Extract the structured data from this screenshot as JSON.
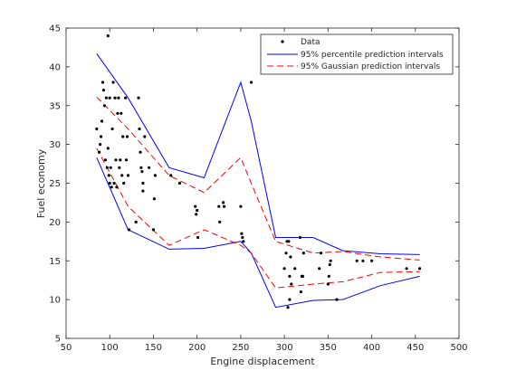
{
  "chart_data": {
    "type": "scatter",
    "title": "",
    "xlabel": "Engine displacement",
    "ylabel": "Fuel economy",
    "xlim": [
      50,
      500
    ],
    "ylim": [
      5,
      45
    ],
    "xticks": [
      50,
      100,
      150,
      200,
      250,
      300,
      350,
      400,
      450,
      500
    ],
    "yticks": [
      5,
      10,
      15,
      20,
      25,
      30,
      35,
      40,
      45
    ],
    "grid": false,
    "legend_position": "top-right",
    "colors": {
      "data": "#000000",
      "percentile": "#0000ff",
      "gaussian": "#ff0000"
    },
    "legend": [
      {
        "label": "Data",
        "style": "marker"
      },
      {
        "label": "95% percentile prediction intervals",
        "style": "solid"
      },
      {
        "label": "95% Gaussian prediction intervals",
        "style": "dashed"
      }
    ],
    "series": [
      {
        "name": "Data",
        "kind": "points",
        "points": [
          [
            85,
            32
          ],
          [
            88,
            29
          ],
          [
            89,
            30
          ],
          [
            90,
            31
          ],
          [
            91,
            33
          ],
          [
            92,
            38
          ],
          [
            93,
            37
          ],
          [
            94,
            35
          ],
          [
            95,
            28
          ],
          [
            96,
            36
          ],
          [
            97,
            27
          ],
          [
            98,
            29.5
          ],
          [
            98,
            44
          ],
          [
            99,
            26
          ],
          [
            100,
            25
          ],
          [
            100,
            36
          ],
          [
            101,
            27
          ],
          [
            102,
            24.5
          ],
          [
            103,
            32
          ],
          [
            104,
            38
          ],
          [
            105,
            25
          ],
          [
            106,
            36
          ],
          [
            107,
            28
          ],
          [
            108,
            24.5
          ],
          [
            109,
            34
          ],
          [
            110,
            36
          ],
          [
            111,
            27
          ],
          [
            112,
            28
          ],
          [
            113,
            34
          ],
          [
            114,
            26
          ],
          [
            115,
            31
          ],
          [
            116,
            25
          ],
          [
            118,
            36
          ],
          [
            119,
            28
          ],
          [
            120,
            31
          ],
          [
            121,
            26
          ],
          [
            122,
            19
          ],
          [
            130,
            20
          ],
          [
            133,
            36
          ],
          [
            134,
            32
          ],
          [
            135,
            29
          ],
          [
            136,
            27
          ],
          [
            137,
            26.5
          ],
          [
            138,
            24
          ],
          [
            138,
            25
          ],
          [
            140,
            31
          ],
          [
            145,
            27
          ],
          [
            150,
            19
          ],
          [
            151,
            23
          ],
          [
            152,
            26
          ],
          [
            170,
            26
          ],
          [
            180,
            25
          ],
          [
            198,
            22
          ],
          [
            199,
            21
          ],
          [
            200,
            21.5
          ],
          [
            201,
            18
          ],
          [
            225,
            22
          ],
          [
            226,
            20
          ],
          [
            230,
            22.5
          ],
          [
            231,
            22
          ],
          [
            250,
            22
          ],
          [
            251,
            18.5
          ],
          [
            252,
            18
          ],
          [
            253,
            17.5
          ],
          [
            262,
            38
          ],
          [
            300,
            14
          ],
          [
            302,
            16
          ],
          [
            303,
            17.5
          ],
          [
            304,
            9
          ],
          [
            305,
            17.5
          ],
          [
            306,
            13
          ],
          [
            306,
            10
          ],
          [
            307,
            15.5
          ],
          [
            308,
            12
          ],
          [
            312,
            14
          ],
          [
            318,
            18
          ],
          [
            319,
            11
          ],
          [
            320,
            13
          ],
          [
            321,
            13
          ],
          [
            322,
            16
          ],
          [
            340,
            14
          ],
          [
            342,
            16
          ],
          [
            350,
            12
          ],
          [
            351,
            13
          ],
          [
            352,
            14.5
          ],
          [
            353,
            15
          ],
          [
            360,
            10
          ],
          [
            383,
            15
          ],
          [
            390,
            15
          ],
          [
            400,
            15
          ],
          [
            440,
            14
          ],
          [
            455,
            14
          ]
        ]
      },
      {
        "name": "95% percentile prediction intervals",
        "kind": "band",
        "style": "solid",
        "upper": [
          [
            85,
            41.7
          ],
          [
            121,
            36
          ],
          [
            168,
            27
          ],
          [
            208,
            25.7
          ],
          [
            250,
            38
          ],
          [
            262,
            33
          ],
          [
            290,
            18
          ],
          [
            333,
            18
          ],
          [
            367,
            16.3
          ],
          [
            410,
            15.9
          ],
          [
            455,
            15.8
          ]
        ],
        "lower": [
          [
            85,
            28.3
          ],
          [
            121,
            19
          ],
          [
            168,
            16.5
          ],
          [
            208,
            16.6
          ],
          [
            250,
            17.5
          ],
          [
            262,
            16
          ],
          [
            290,
            9
          ],
          [
            333,
            9.9
          ],
          [
            367,
            10
          ],
          [
            410,
            11.8
          ],
          [
            455,
            13
          ]
        ]
      },
      {
        "name": "95% Gaussian prediction intervals",
        "kind": "band",
        "style": "dashed",
        "upper": [
          [
            85,
            36.1
          ],
          [
            121,
            32
          ],
          [
            168,
            26
          ],
          [
            208,
            23.8
          ],
          [
            250,
            28.3
          ],
          [
            262,
            25
          ],
          [
            290,
            17.5
          ],
          [
            333,
            16
          ],
          [
            367,
            16.2
          ],
          [
            410,
            15.5
          ],
          [
            455,
            15.1
          ]
        ],
        "lower": [
          [
            85,
            29.5
          ],
          [
            121,
            22
          ],
          [
            168,
            17
          ],
          [
            208,
            19
          ],
          [
            250,
            17
          ],
          [
            262,
            16
          ],
          [
            290,
            11.5
          ],
          [
            333,
            12
          ],
          [
            367,
            12.3
          ],
          [
            410,
            13.5
          ],
          [
            455,
            13.6
          ]
        ]
      }
    ]
  }
}
